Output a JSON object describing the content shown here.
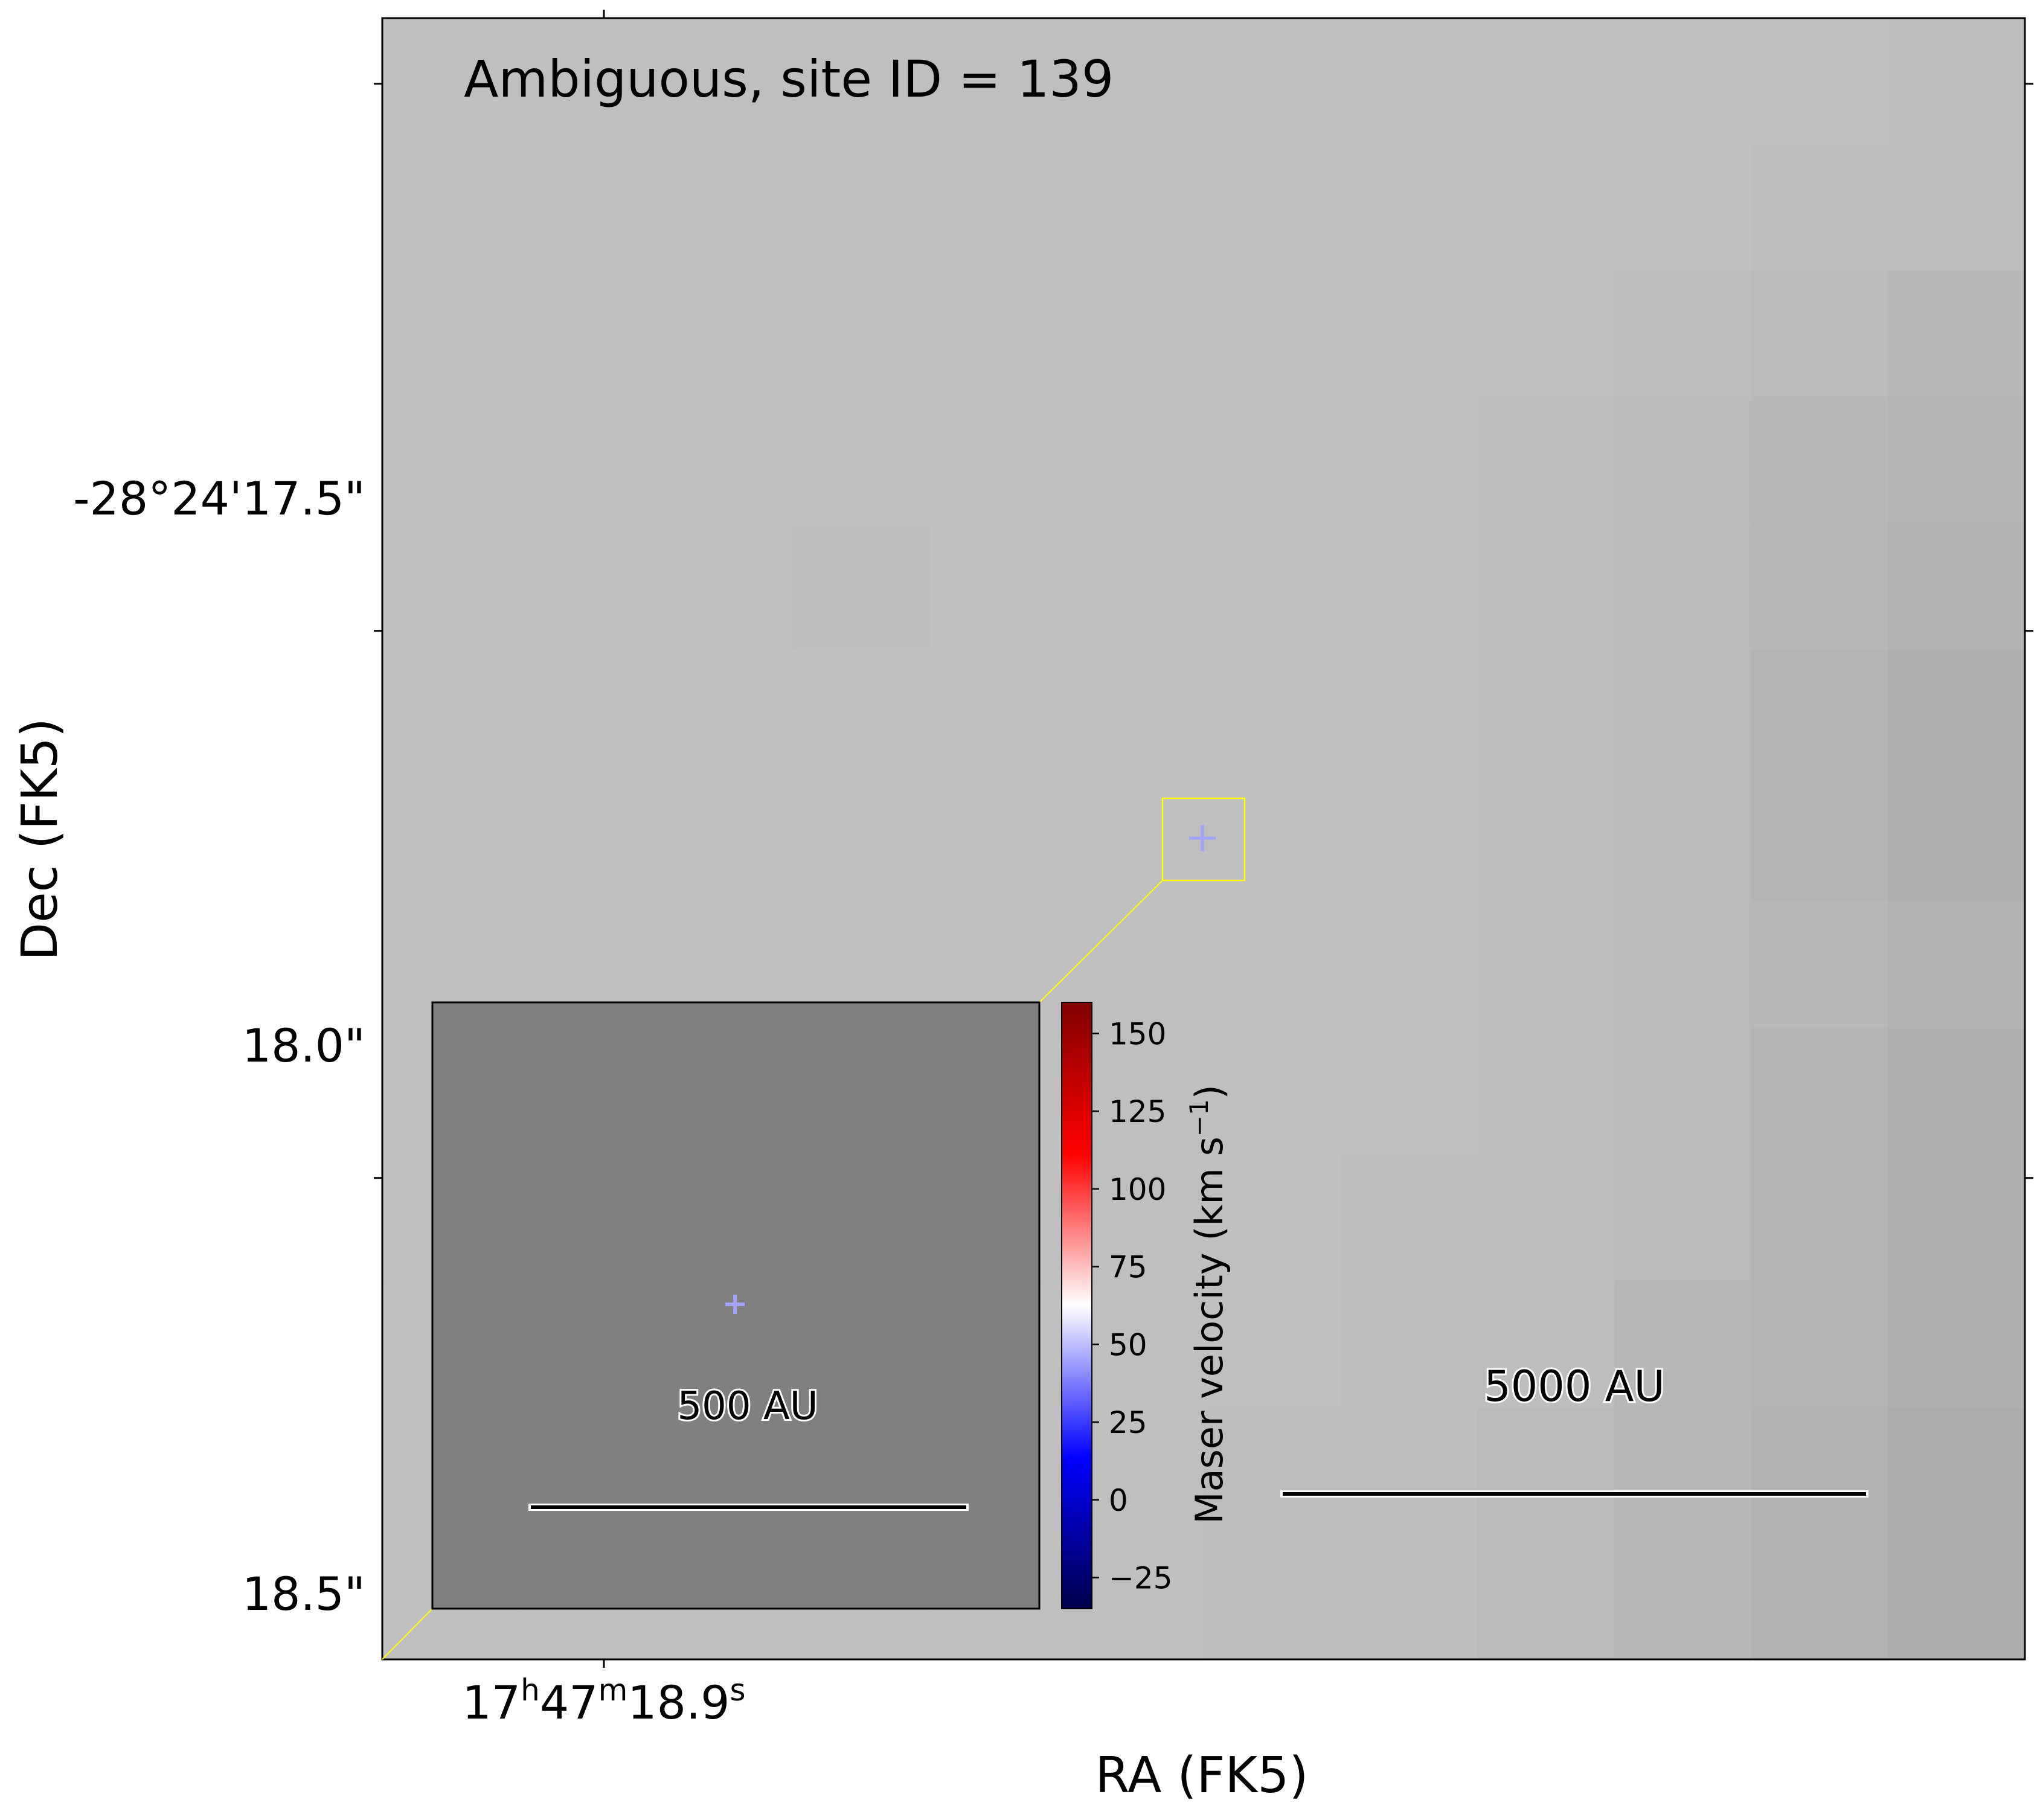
{
  "chart_data": {
    "type": "heatmap",
    "title": "Ambiguous, site ID = 139",
    "xlabel": "RA (FK5)",
    "ylabel": "Dec (FK5)",
    "x_ticks": [
      {
        "h": "17",
        "m": "47",
        "s": "18.9"
      }
    ],
    "y_ticks": [
      {
        "value": 17.5,
        "label": "-28°24'17.5\""
      },
      {
        "value": 18.0,
        "label": "18.0\""
      },
      {
        "value": 18.5,
        "label": "18.5\""
      }
    ],
    "ylim_arcsec": [
      18.56,
      17.06
    ],
    "image_grayscale": [
      [
        0.75,
        0.75,
        0.75,
        0.75,
        0.75,
        0.75,
        0.75,
        0.75,
        0.75,
        0.75,
        0.75,
        0.74
      ],
      [
        0.75,
        0.75,
        0.75,
        0.75,
        0.75,
        0.75,
        0.75,
        0.75,
        0.75,
        0.75,
        0.74,
        0.74
      ],
      [
        0.75,
        0.75,
        0.75,
        0.75,
        0.75,
        0.75,
        0.75,
        0.75,
        0.75,
        0.74,
        0.73,
        0.72
      ],
      [
        0.75,
        0.75,
        0.75,
        0.75,
        0.75,
        0.75,
        0.75,
        0.75,
        0.74,
        0.73,
        0.72,
        0.71
      ],
      [
        0.75,
        0.75,
        0.75,
        0.74,
        0.75,
        0.75,
        0.75,
        0.75,
        0.74,
        0.73,
        0.72,
        0.7
      ],
      [
        0.75,
        0.75,
        0.75,
        0.75,
        0.75,
        0.75,
        0.75,
        0.75,
        0.74,
        0.73,
        0.71,
        0.69
      ],
      [
        0.75,
        0.75,
        0.75,
        0.75,
        0.75,
        0.75,
        0.75,
        0.75,
        0.74,
        0.73,
        0.71,
        0.69
      ],
      [
        0.75,
        0.75,
        0.75,
        0.75,
        0.75,
        0.75,
        0.75,
        0.75,
        0.74,
        0.73,
        0.72,
        0.7
      ],
      [
        0.75,
        0.75,
        0.75,
        0.75,
        0.75,
        0.75,
        0.75,
        0.75,
        0.74,
        0.73,
        0.71,
        0.69
      ],
      [
        0.75,
        0.75,
        0.75,
        0.75,
        0.75,
        0.75,
        0.75,
        0.74,
        0.74,
        0.73,
        0.71,
        0.69
      ],
      [
        0.75,
        0.75,
        0.75,
        0.75,
        0.75,
        0.75,
        0.75,
        0.74,
        0.74,
        0.72,
        0.71,
        0.69
      ],
      [
        0.75,
        0.75,
        0.75,
        0.75,
        0.75,
        0.75,
        0.74,
        0.74,
        0.73,
        0.72,
        0.7,
        0.68
      ],
      [
        0.75,
        0.75,
        0.75,
        0.75,
        0.75,
        0.75,
        0.74,
        0.74,
        0.73,
        0.72,
        0.7,
        0.68
      ]
    ],
    "maser_point": {
      "velocity_kms": 45
    },
    "scalebar_main_label": "5000 AU",
    "inset": {
      "background": "#808080",
      "border": "#000000",
      "connector_color": "#ffff00",
      "scalebar_label": "500 AU"
    },
    "colorbar": {
      "label_main": "Maser velocity (km s",
      "label_sup": "−1",
      "label_close": ")",
      "vmin": -35,
      "vmax": 160,
      "ticks": [
        "−25",
        "0",
        "25",
        "50",
        "75",
        "100",
        "125",
        "150"
      ],
      "tick_values": [
        -25,
        0,
        25,
        50,
        75,
        100,
        125,
        150
      ],
      "colormap": "seismic"
    },
    "grid": false
  }
}
